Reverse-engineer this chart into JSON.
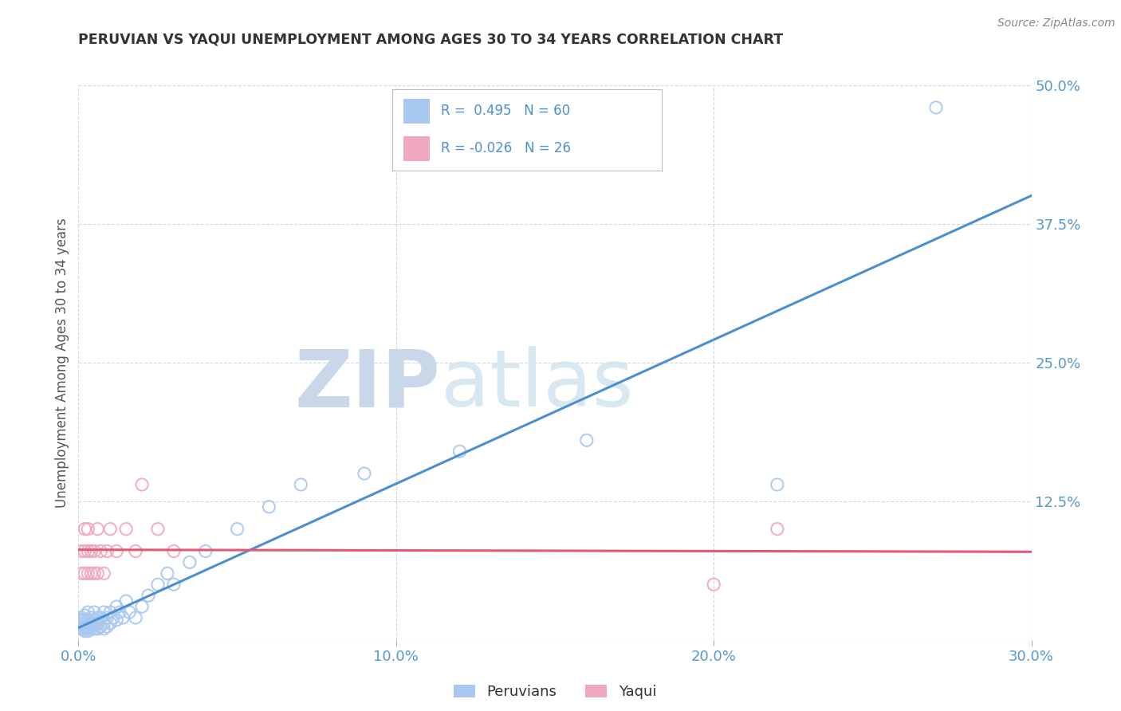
{
  "title": "PERUVIAN VS YAQUI UNEMPLOYMENT AMONG AGES 30 TO 34 YEARS CORRELATION CHART",
  "source": "Source: ZipAtlas.com",
  "ylabel": "Unemployment Among Ages 30 to 34 years",
  "xlim": [
    0.0,
    0.3
  ],
  "ylim": [
    0.0,
    0.5
  ],
  "xticks": [
    0.0,
    0.1,
    0.2,
    0.3
  ],
  "xtick_labels": [
    "0.0%",
    "10.0%",
    "20.0%",
    "30.0%"
  ],
  "yticks": [
    0.0,
    0.125,
    0.25,
    0.375,
    0.5
  ],
  "ytick_labels": [
    "",
    "12.5%",
    "25.0%",
    "37.5%",
    "50.0%"
  ],
  "legend_labels": [
    "Peruvians",
    "Yaqui"
  ],
  "R_peruvian": 0.495,
  "N_peruvian": 60,
  "R_yaqui": -0.026,
  "N_yaqui": 26,
  "peruvian_color": "#a8c8f0",
  "yaqui_color": "#f0a8c0",
  "peruvian_line_color": "#4a90d0",
  "yaqui_line_color": "#e05878",
  "watermark_zip": "ZIP",
  "watermark_atlas": "atlas",
  "watermark_color": "#dce8f0",
  "background_color": "#ffffff",
  "peruvian_x": [
    0.001,
    0.001,
    0.001,
    0.001,
    0.001,
    0.002,
    0.002,
    0.002,
    0.002,
    0.002,
    0.002,
    0.003,
    0.003,
    0.003,
    0.003,
    0.003,
    0.003,
    0.004,
    0.004,
    0.004,
    0.004,
    0.005,
    0.005,
    0.005,
    0.005,
    0.006,
    0.006,
    0.006,
    0.007,
    0.007,
    0.008,
    0.008,
    0.008,
    0.009,
    0.009,
    0.01,
    0.01,
    0.011,
    0.012,
    0.012,
    0.013,
    0.014,
    0.015,
    0.016,
    0.018,
    0.02,
    0.022,
    0.025,
    0.028,
    0.03,
    0.035,
    0.04,
    0.05,
    0.06,
    0.07,
    0.09,
    0.12,
    0.16,
    0.22,
    0.27
  ],
  "peruvian_y": [
    0.01,
    0.012,
    0.015,
    0.018,
    0.02,
    0.008,
    0.01,
    0.012,
    0.015,
    0.018,
    0.022,
    0.008,
    0.01,
    0.012,
    0.015,
    0.018,
    0.025,
    0.01,
    0.012,
    0.015,
    0.02,
    0.01,
    0.015,
    0.018,
    0.025,
    0.01,
    0.015,
    0.02,
    0.012,
    0.02,
    0.01,
    0.015,
    0.025,
    0.012,
    0.02,
    0.015,
    0.025,
    0.02,
    0.018,
    0.03,
    0.025,
    0.02,
    0.035,
    0.025,
    0.02,
    0.03,
    0.04,
    0.05,
    0.06,
    0.05,
    0.07,
    0.08,
    0.1,
    0.12,
    0.14,
    0.15,
    0.17,
    0.18,
    0.14,
    0.48
  ],
  "yaqui_x": [
    0.001,
    0.001,
    0.002,
    0.002,
    0.002,
    0.003,
    0.003,
    0.003,
    0.004,
    0.004,
    0.005,
    0.005,
    0.006,
    0.006,
    0.007,
    0.008,
    0.009,
    0.01,
    0.012,
    0.015,
    0.018,
    0.02,
    0.025,
    0.03,
    0.2,
    0.22
  ],
  "yaqui_y": [
    0.06,
    0.08,
    0.06,
    0.08,
    0.1,
    0.06,
    0.08,
    0.1,
    0.06,
    0.08,
    0.06,
    0.08,
    0.06,
    0.1,
    0.08,
    0.06,
    0.08,
    0.1,
    0.08,
    0.1,
    0.08,
    0.14,
    0.1,
    0.08,
    0.05,
    0.1
  ]
}
